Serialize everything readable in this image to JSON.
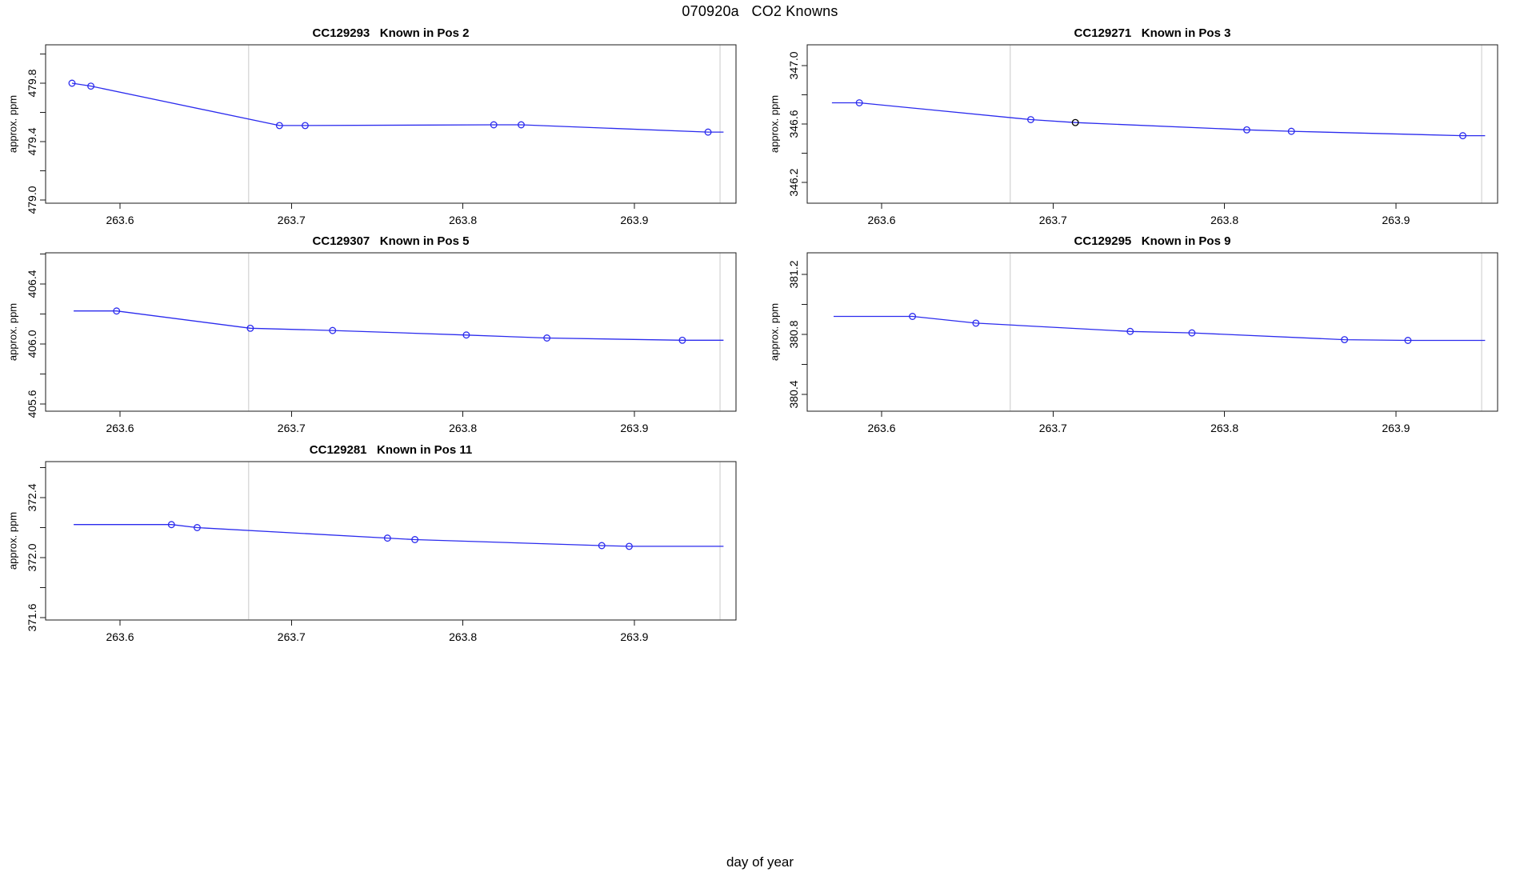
{
  "page": {
    "title": "070920a   CO2 Knowns",
    "xlabel": "day of year"
  },
  "colors": {
    "series_blue": "#2b2bee",
    "flag_black": "#000000",
    "vline_gray": "#d9d9d9",
    "axis_black": "#1a1a1a"
  },
  "chart_data": [
    {
      "type": "line",
      "instrument_id": "CC129293",
      "position_label": "Known in Pos 2",
      "ylabel": "approx. ppm",
      "row": 0,
      "col": 0,
      "xlim": [
        263.5566,
        263.9593
      ],
      "ylim": [
        478.978,
        480.063
      ],
      "xticks": [
        263.6,
        263.7,
        263.8,
        263.9
      ],
      "xtick_labels": [
        "263.6",
        "263.7",
        "263.8",
        "263.9"
      ],
      "yticks": [
        479.0,
        479.2,
        479.4,
        479.6,
        479.8,
        480.0
      ],
      "ytick_labels": [
        "479.0",
        "",
        "479.4",
        "",
        "479.8",
        ""
      ],
      "vlines": [
        263.675,
        263.95
      ],
      "x": [
        263.572,
        263.583,
        263.693,
        263.708,
        263.818,
        263.834,
        263.943
      ],
      "y": [
        479.8,
        479.78,
        479.51,
        479.51,
        479.515,
        479.515,
        479.465
      ],
      "point_colors": [
        "blue",
        "blue",
        "blue",
        "blue",
        "blue",
        "blue",
        "blue"
      ],
      "line_start_x": 263.572,
      "line_end_x": 263.952
    },
    {
      "type": "line",
      "instrument_id": "CC129271",
      "position_label": "Known in Pos 3",
      "ylabel": "approx. ppm",
      "row": 0,
      "col": 1,
      "xlim": [
        263.5566,
        263.9593
      ],
      "ylim": [
        346.058,
        347.142
      ],
      "xticks": [
        263.6,
        263.7,
        263.8,
        263.9
      ],
      "xtick_labels": [
        "263.6",
        "263.7",
        "263.8",
        "263.9"
      ],
      "yticks": [
        346.2,
        346.4,
        346.6,
        346.8,
        347.0
      ],
      "ytick_labels": [
        "346.2",
        "",
        "346.6",
        "",
        "347.0"
      ],
      "vlines": [
        263.675,
        263.95
      ],
      "x": [
        263.587,
        263.687,
        263.713,
        263.813,
        263.839,
        263.939
      ],
      "y": [
        346.745,
        346.63,
        346.61,
        346.56,
        346.55,
        346.52
      ],
      "point_colors": [
        "blue",
        "blue",
        "black",
        "blue",
        "blue",
        "blue"
      ],
      "line_start_x": 263.571,
      "line_end_x": 263.952
    },
    {
      "type": "line",
      "instrument_id": "CC129307",
      "position_label": "Known in Pos 5",
      "ylabel": "approx. ppm",
      "row": 1,
      "col": 0,
      "xlim": [
        263.5566,
        263.9593
      ],
      "ylim": [
        405.552,
        406.608
      ],
      "xticks": [
        263.6,
        263.7,
        263.8,
        263.9
      ],
      "xtick_labels": [
        "263.6",
        "263.7",
        "263.8",
        "263.9"
      ],
      "yticks": [
        405.6,
        405.8,
        406.0,
        406.2,
        406.4,
        406.6
      ],
      "ytick_labels": [
        "405.6",
        "",
        "406.0",
        "",
        "406.4",
        ""
      ],
      "vlines": [
        263.675,
        263.95
      ],
      "x": [
        263.598,
        263.676,
        263.724,
        263.802,
        263.849,
        263.928
      ],
      "y": [
        406.22,
        406.105,
        406.09,
        406.06,
        406.04,
        406.025
      ],
      "point_colors": [
        "blue",
        "blue",
        "blue",
        "blue",
        "blue",
        "blue"
      ],
      "line_start_x": 263.573,
      "line_end_x": 263.952
    },
    {
      "type": "line",
      "instrument_id": "CC129295",
      "position_label": "Known in Pos 9",
      "ylabel": "approx. ppm",
      "row": 1,
      "col": 1,
      "xlim": [
        263.5566,
        263.9593
      ],
      "ylim": [
        380.288,
        381.344
      ],
      "xticks": [
        263.6,
        263.7,
        263.8,
        263.9
      ],
      "xtick_labels": [
        "263.6",
        "263.7",
        "263.8",
        "263.9"
      ],
      "yticks": [
        380.4,
        380.6,
        380.8,
        381.0,
        381.2
      ],
      "ytick_labels": [
        "380.4",
        "",
        "380.8",
        "",
        "381.2"
      ],
      "vlines": [
        263.675,
        263.95
      ],
      "x": [
        263.618,
        263.655,
        263.745,
        263.781,
        263.87,
        263.907
      ],
      "y": [
        380.92,
        380.875,
        380.82,
        380.81,
        380.765,
        380.76
      ],
      "point_colors": [
        "blue",
        "blue",
        "blue",
        "blue",
        "blue",
        "blue"
      ],
      "line_start_x": 263.572,
      "line_end_x": 263.952
    },
    {
      "type": "line",
      "instrument_id": "CC129281",
      "position_label": "Known in Pos 11",
      "ylabel": "approx. ppm",
      "row": 2,
      "col": 0,
      "xlim": [
        263.5566,
        263.9593
      ],
      "ylim": [
        371.584,
        372.64
      ],
      "xticks": [
        263.6,
        263.7,
        263.8,
        263.9
      ],
      "xtick_labels": [
        "263.6",
        "263.7",
        "263.8",
        "263.9"
      ],
      "yticks": [
        371.6,
        371.8,
        372.0,
        372.2,
        372.4,
        372.6
      ],
      "ytick_labels": [
        "371.6",
        "",
        "372.0",
        "",
        "372.4",
        ""
      ],
      "vlines": [
        263.675,
        263.95
      ],
      "x": [
        263.63,
        263.645,
        263.756,
        263.772,
        263.881,
        263.897
      ],
      "y": [
        372.22,
        372.2,
        372.13,
        372.12,
        372.08,
        372.075
      ],
      "point_colors": [
        "blue",
        "blue",
        "blue",
        "blue",
        "blue",
        "blue"
      ],
      "line_start_x": 263.573,
      "line_end_x": 263.952
    }
  ]
}
